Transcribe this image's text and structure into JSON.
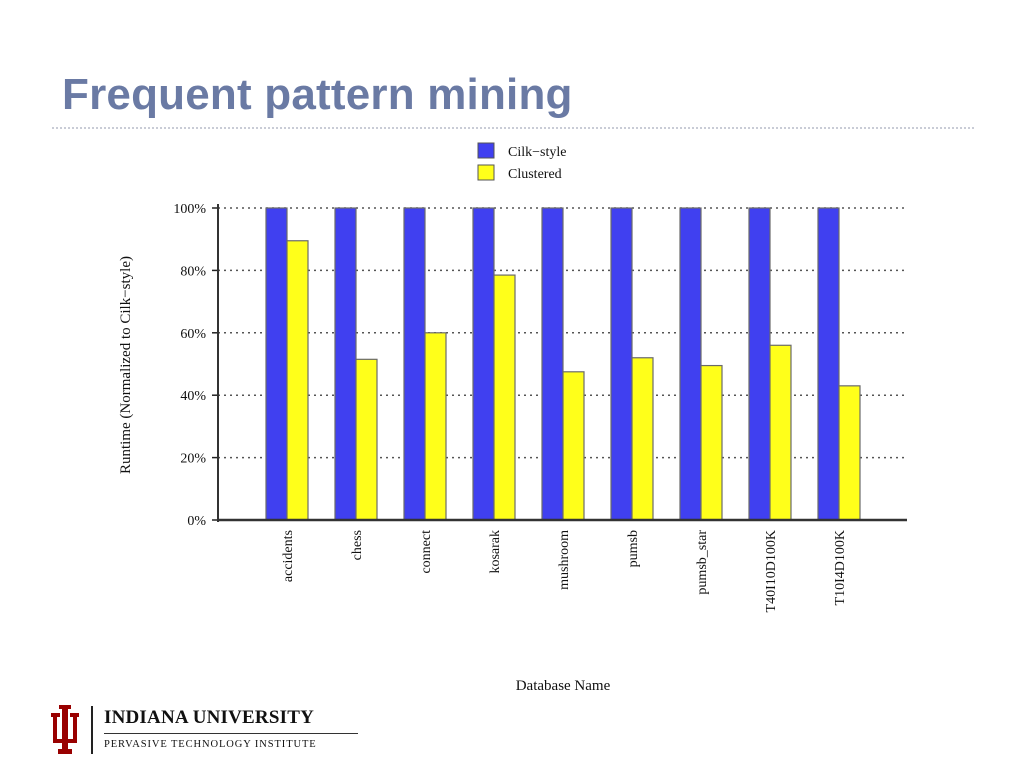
{
  "slide": {
    "title": "Frequent pattern mining"
  },
  "footer": {
    "university": "INDIANA UNIVERSITY",
    "institute": "PERVASIVE TECHNOLOGY INSTITUTE",
    "logo_icon": "iu-trident-icon",
    "logo_color": "#990000"
  },
  "chart_data": {
    "type": "bar",
    "xlabel": "Database Name",
    "ylabel": "Runtime (Normalized to Cilk−style)",
    "ylim": [
      0,
      100
    ],
    "yticks": [
      0,
      20,
      40,
      60,
      80,
      100
    ],
    "ytick_labels": [
      "0%",
      "20%",
      "40%",
      "60%",
      "80%",
      "100%"
    ],
    "grid": true,
    "legend_position": "top-center",
    "categories": [
      "accidents",
      "chess",
      "connect",
      "kosarak",
      "mushroom",
      "pumsb",
      "pumsb_star",
      "T40I10D100K",
      "T10I4D100K"
    ],
    "series": [
      {
        "name": "Cilk−style",
        "color": "#4040f0",
        "values": [
          100,
          100,
          100,
          100,
          100,
          100,
          100,
          100,
          100
        ]
      },
      {
        "name": "Clustered",
        "color": "#ffff1a",
        "values": [
          89.5,
          51.5,
          60,
          78.5,
          47.5,
          52,
          49.5,
          56,
          43
        ]
      }
    ]
  }
}
